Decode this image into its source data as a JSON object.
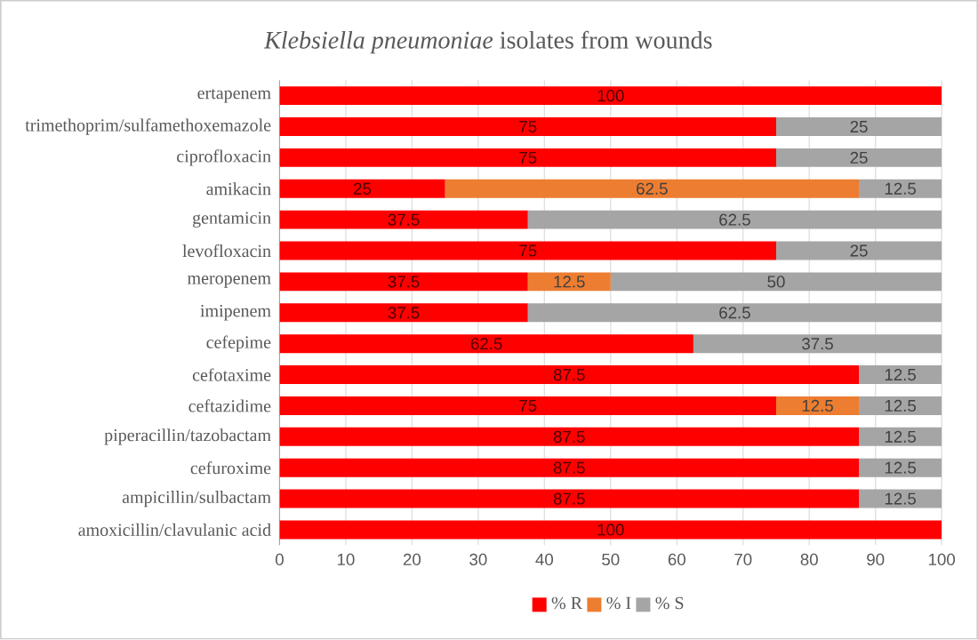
{
  "chart_data": {
    "type": "bar",
    "orientation": "horizontal",
    "stacked": true,
    "title": "*Klebsiella pneumoniae* isolates from wounds",
    "categories": [
      "ertapenem",
      "trimethoprim/sulfamethoxemazole",
      "ciprofloxacin",
      "amikacin",
      "gentamicin",
      "levofloxacin",
      "meropenem",
      "imipenem",
      "cefepime",
      "cefotaxime",
      "ceftazidime",
      "piperacillin/tazobactam",
      "cefuroxime",
      "ampicillin/sulbactam",
      "amoxicillin/clavulanic acid"
    ],
    "series": [
      {
        "name": "% R",
        "color": "#ff0000",
        "values": [
          100,
          75,
          75,
          25,
          37.5,
          75,
          37.5,
          37.5,
          62.5,
          87.5,
          75,
          87.5,
          87.5,
          87.5,
          100
        ],
        "value_labels": [
          "100",
          "75",
          "75",
          "25",
          "37.5",
          "75",
          "37.5",
          "37.5",
          "62.5",
          "87.5",
          "75",
          "87.5",
          "87.5",
          "87.5",
          "100"
        ]
      },
      {
        "name": "% I",
        "color": "#ed7d31",
        "values": [
          0,
          0,
          0,
          62.5,
          0,
          0,
          12.5,
          0,
          0,
          0,
          12.5,
          0,
          0,
          0,
          0
        ],
        "value_labels": [
          null,
          null,
          null,
          "62.5",
          null,
          null,
          "12.5",
          null,
          null,
          null,
          "12.5",
          null,
          null,
          null,
          null
        ]
      },
      {
        "name": "% S",
        "color": "#a5a5a5",
        "values": [
          0,
          25,
          25,
          12.5,
          62.5,
          25,
          50,
          62.5,
          37.5,
          12.5,
          12.5,
          12.5,
          12.5,
          12.5,
          0
        ],
        "value_labels": [
          null,
          "25",
          "25",
          "12.5",
          "62.5",
          "25",
          "50",
          "62.5",
          "37.5",
          "12.5",
          "12.5",
          "12.5",
          "12.5",
          "12.5",
          null
        ]
      }
    ],
    "xlim": [
      0,
      100
    ],
    "xticks": [
      0,
      10,
      20,
      30,
      40,
      50,
      60,
      70,
      80,
      90,
      100
    ],
    "grid": "x",
    "legend": "bottom"
  }
}
